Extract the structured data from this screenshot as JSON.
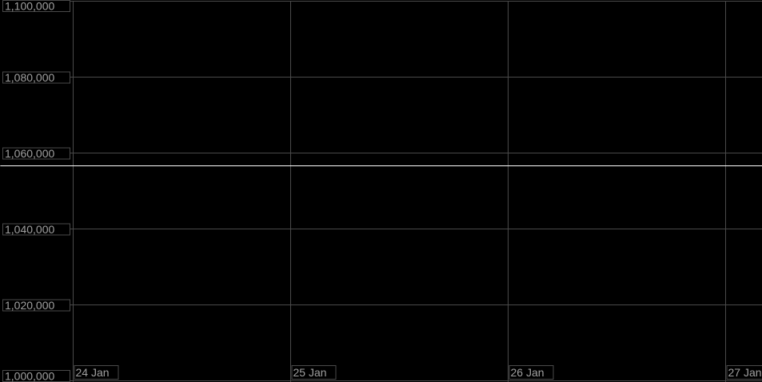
{
  "chart_data": {
    "type": "line",
    "title": "",
    "xlabel": "",
    "ylabel": "",
    "ylim": [
      1000000,
      1100000
    ],
    "xlim": [
      "2024-01-23T16:00",
      "2024-01-27T05:00"
    ],
    "grid": true,
    "y_ticks": [
      "1,100,000",
      "1,080,000",
      "1,060,000",
      "1,040,000",
      "1,020,000",
      "1,000,000"
    ],
    "y_tick_values": [
      1100000,
      1080000,
      1060000,
      1040000,
      1020000,
      1000000
    ],
    "x_ticks": [
      "24 Jan",
      "25 Jan",
      "26 Jan",
      "27 Jan"
    ],
    "series": [
      {
        "color": "#ffffff",
        "x": [
          "2024-01-23T16:00",
          "2024-01-27T05:00"
        ],
        "y": [
          1056600,
          1056600
        ]
      }
    ]
  },
  "colors": {
    "background": "#000000",
    "grid": "#4a4a4a",
    "label": "#a0a0a0"
  }
}
